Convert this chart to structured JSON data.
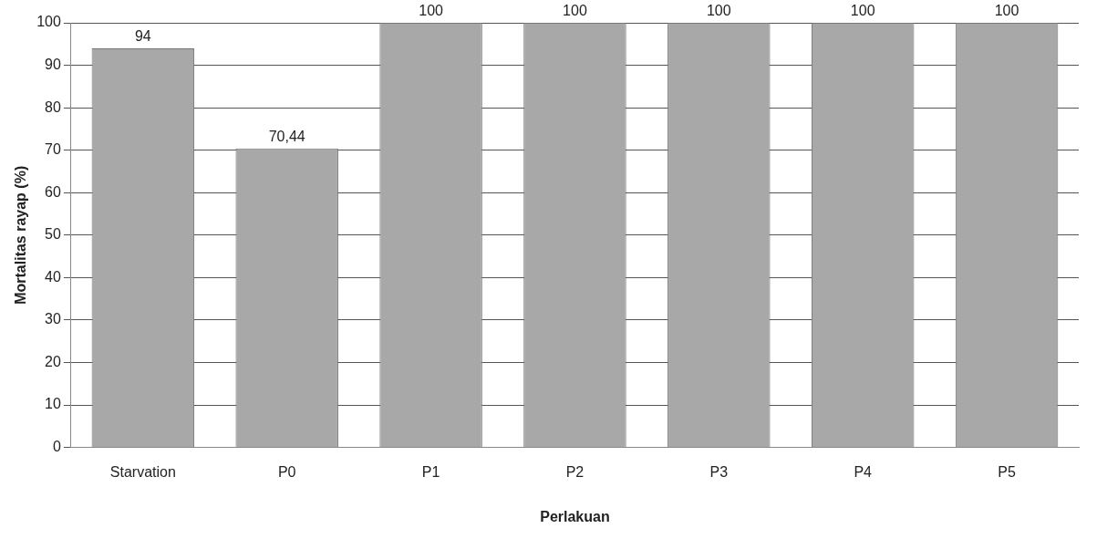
{
  "chart_data": {
    "type": "bar",
    "xlabel": "Perlakuan",
    "ylabel": "Mortalitas rayap (%)",
    "categories": [
      "Starvation",
      "P0",
      "P1",
      "P2",
      "P3",
      "P4",
      "P5"
    ],
    "values": [
      94,
      70.44,
      100,
      100,
      100,
      100,
      100
    ],
    "value_labels": [
      "94",
      "70,44",
      "100",
      "100",
      "100",
      "100",
      "100"
    ],
    "color": "#a8a8a8",
    "ylim": [
      0,
      100
    ],
    "yticks": [
      0,
      10,
      20,
      30,
      40,
      50,
      60,
      70,
      80,
      90,
      100
    ],
    "grid": "y"
  }
}
